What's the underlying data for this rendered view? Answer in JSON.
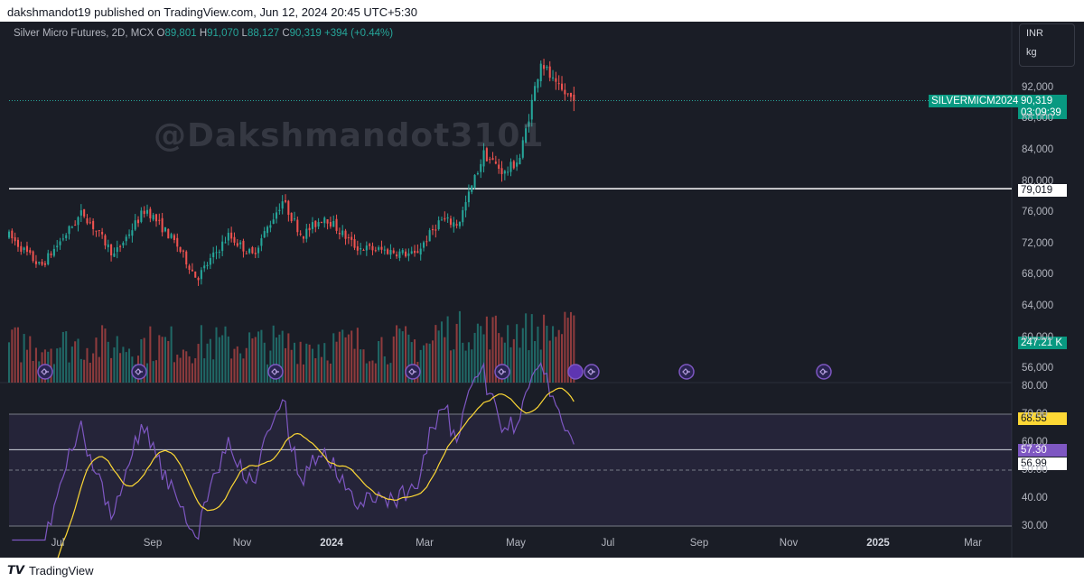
{
  "caption": "dakshmandot19 published on TradingView.com, Jun 12, 2024 20:45 UTC+5:30",
  "legend": {
    "symbol": "Silver Micro Futures, 2D, MCX",
    "o_label": "O",
    "o": "89,801",
    "h_label": "H",
    "h": "91,070",
    "l_label": "L",
    "l": "88,127",
    "c_label": "C",
    "c": "90,319",
    "change": "+394 (+0.44%)"
  },
  "units": {
    "currency": "INR",
    "unit": "kg"
  },
  "watermark": "@Dakshmandot3101",
  "footer": {
    "brand": "TradingView"
  },
  "price_axis": {
    "labels": [
      "92,000",
      "88,000",
      "84,000",
      "80,000",
      "76,000",
      "72,000",
      "68,000",
      "64,000",
      "60,000",
      "56,000"
    ]
  },
  "tags": {
    "symbol_tag": "SILVERMICM2024",
    "last_price": "90,319",
    "countdown": "03:09:39",
    "level": "79,019",
    "volume": "247.21 K",
    "rsi_ma": "68.55",
    "rsi": "57.30",
    "rsi_mid": "56.99"
  },
  "rsi_axis": {
    "labels": [
      "80.00",
      "70.00",
      "60.00",
      "50.00",
      "40.00",
      "30.00"
    ]
  },
  "time_axis": {
    "labels": [
      "Jul",
      "Sep",
      "Nov",
      "2024",
      "Mar",
      "May",
      "Jul",
      "Sep",
      "Nov",
      "2025",
      "Mar"
    ]
  },
  "colors": {
    "up": "#26a69a",
    "down": "#ef5350",
    "background": "#1a1d26",
    "rsi": "#7e57c2",
    "rsi_ma": "#fdd835"
  },
  "chart_data": {
    "type": "candlestick",
    "symbol": "Silver Micro Futures, 2D, MCX",
    "interval": "2D",
    "currency": "INR",
    "horizontal_level": 79019,
    "last_close": 90319,
    "price_range": [
      54000,
      99000
    ],
    "anchors": [
      {
        "date": "2023-06-01",
        "price": 73000
      },
      {
        "date": "2023-06-22",
        "price": 69000
      },
      {
        "date": "2023-07-20",
        "price": 76000
      },
      {
        "date": "2023-08-10",
        "price": 70500
      },
      {
        "date": "2023-08-31",
        "price": 76500
      },
      {
        "date": "2023-09-20",
        "price": 72000
      },
      {
        "date": "2023-10-04",
        "price": 67500
      },
      {
        "date": "2023-10-25",
        "price": 73000
      },
      {
        "date": "2023-11-10",
        "price": 70500
      },
      {
        "date": "2023-11-30",
        "price": 77500
      },
      {
        "date": "2023-12-13",
        "price": 73000
      },
      {
        "date": "2023-12-28",
        "price": 75500
      },
      {
        "date": "2024-01-18",
        "price": 71500
      },
      {
        "date": "2024-02-10",
        "price": 71000
      },
      {
        "date": "2024-02-26",
        "price": 70500
      },
      {
        "date": "2024-03-14",
        "price": 75000
      },
      {
        "date": "2024-03-26",
        "price": 74500
      },
      {
        "date": "2024-04-12",
        "price": 83500
      },
      {
        "date": "2024-04-26",
        "price": 81000
      },
      {
        "date": "2024-05-06",
        "price": 83000
      },
      {
        "date": "2024-05-20",
        "price": 95500
      },
      {
        "date": "2024-05-30",
        "price": 92000
      },
      {
        "date": "2024-06-12",
        "price": 90319
      }
    ],
    "rsi": {
      "period_levels": {
        "upper": 70,
        "lower": 30,
        "middle": 50
      },
      "last_rsi": 57.3,
      "last_rsi_ma": 68.55
    },
    "volume_last": "247.21 K"
  }
}
